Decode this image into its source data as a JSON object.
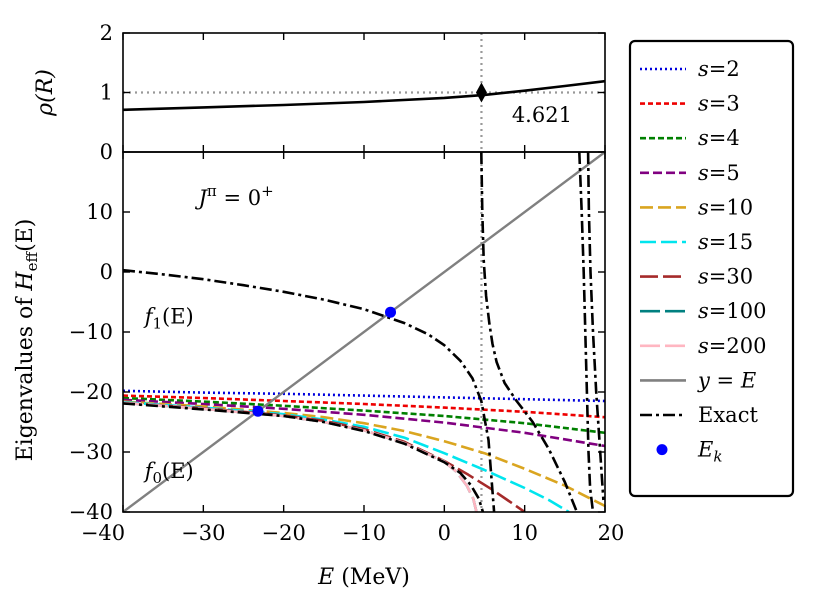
{
  "chart_data": [
    {
      "id": "top",
      "type": "line",
      "ylabel": "ρ(R)",
      "xlim": [
        -40,
        20
      ],
      "ylim": [
        0,
        2
      ],
      "yticks": [
        0,
        1,
        2
      ],
      "yticklabels": [
        "0",
        "1",
        "2"
      ],
      "xticks": [
        -40,
        -30,
        -20,
        -10,
        0,
        10,
        20
      ],
      "series": [
        {
          "name": "rho",
          "color": "#000000",
          "x": [
            -40,
            -30,
            -20,
            -10,
            0,
            5,
            10,
            15,
            20
          ],
          "y": [
            0.71,
            0.75,
            0.79,
            0.84,
            0.91,
            0.96,
            1.03,
            1.11,
            1.19
          ]
        }
      ],
      "reference_lines": {
        "horizontal_y": 1.0,
        "vertical_x": 4.621,
        "color": "#999999"
      },
      "marker": {
        "x": 4.621,
        "y": 1.0,
        "shape": "diamond",
        "color": "#000000"
      },
      "annotation": {
        "text": "4.621",
        "x": 8.4,
        "y": 0.62
      }
    },
    {
      "id": "main",
      "type": "line",
      "xlabel_var": "E",
      "xlabel_unit": " (MeV)",
      "ylabel_prefix": "Eigenvalues of ",
      "ylabel_var": "H",
      "ylabel_sub": "eff",
      "ylabel_suffix": "(E)",
      "xlim": [
        -40,
        20
      ],
      "ylim": [
        -40,
        20
      ],
      "xticks": [
        -40,
        -30,
        -20,
        -10,
        0,
        10,
        20
      ],
      "xticklabels": [
        "−40",
        "−30",
        "−20",
        "−10",
        "0",
        "10",
        "20"
      ],
      "yticks": [
        -40,
        -30,
        -20,
        -10,
        0,
        10
      ],
      "yticklabels": [
        "−40",
        "−30",
        "−20",
        "−10",
        "0",
        "10"
      ],
      "annotations": {
        "jpi": {
          "var": "J",
          "sup": "π",
          "rest": " = 0",
          "sup2": "+",
          "x": -30.6,
          "y": 12.3
        },
        "f1": {
          "var": "f",
          "sub": "1",
          "rest": "(E)",
          "x": -37.3,
          "y": -7.4
        },
        "f0": {
          "var": "f",
          "sub": "0",
          "rest": "(E)",
          "x": -37.3,
          "y": -33.2
        }
      },
      "vertical_line": {
        "x": 4.621,
        "color": "#999999"
      },
      "series": [
        {
          "name": "s=2",
          "color": "#0000dd",
          "dash": "2,3",
          "x": [
            -40,
            -30,
            -20,
            -10,
            0,
            10,
            20
          ],
          "y": [
            -19.8,
            -20.1,
            -20.3,
            -20.6,
            -20.9,
            -21.2,
            -21.5
          ]
        },
        {
          "name": "s=3",
          "color": "#ee0000",
          "dash": "5,3",
          "x": [
            -40,
            -30,
            -20,
            -10,
            0,
            10,
            20
          ],
          "y": [
            -20.6,
            -21.0,
            -21.5,
            -22.0,
            -22.6,
            -23.3,
            -24.2
          ]
        },
        {
          "name": "s=4",
          "color": "#008000",
          "dash": "6,3",
          "x": [
            -40,
            -30,
            -20,
            -10,
            0,
            10,
            20
          ],
          "y": [
            -21.0,
            -21.6,
            -22.3,
            -23.1,
            -24.0,
            -25.2,
            -26.8
          ]
        },
        {
          "name": "s=5",
          "color": "#800080",
          "dash": "9,4",
          "x": [
            -40,
            -30,
            -20,
            -10,
            0,
            10,
            20
          ],
          "y": [
            -21.3,
            -22.0,
            -22.8,
            -23.8,
            -25.1,
            -26.8,
            -29.0
          ]
        },
        {
          "name": "s=10",
          "color": "#daa520",
          "dash": "13,5",
          "x": [
            -40,
            -30,
            -20,
            -15,
            -10,
            -5,
            0,
            5,
            10,
            15,
            20
          ],
          "y": [
            -21.6,
            -22.4,
            -23.5,
            -24.2,
            -25.2,
            -26.5,
            -28.2,
            -30.2,
            -32.8,
            -35.6,
            -39.0
          ]
        },
        {
          "name": "s=15",
          "color": "#00e5ee",
          "dash": "16,5",
          "x": [
            -40,
            -30,
            -20,
            -15,
            -10,
            -5,
            0,
            5,
            10,
            13,
            15.5
          ],
          "y": [
            -21.7,
            -22.6,
            -23.7,
            -24.6,
            -25.8,
            -27.6,
            -30.2,
            -33.0,
            -36.0,
            -38.0,
            -40.0
          ]
        },
        {
          "name": "s=30",
          "color": "#a52a2a",
          "dash": "18,5",
          "x": [
            -40,
            -30,
            -20,
            -15,
            -10,
            -5,
            0,
            3,
            6,
            8.5,
            10
          ],
          "y": [
            -21.8,
            -22.7,
            -23.9,
            -24.8,
            -26.2,
            -28.3,
            -31.5,
            -33.8,
            -36.3,
            -38.6,
            -40.0
          ]
        },
        {
          "name": "s=100",
          "color": "#008080",
          "dash": "20,5",
          "x": [
            -40,
            -30,
            -20,
            -15,
            -10,
            -5,
            0,
            1.5,
            2.8,
            3.6,
            4.0
          ],
          "y": [
            -21.8,
            -22.8,
            -24.0,
            -25.0,
            -26.4,
            -28.5,
            -31.6,
            -33.3,
            -35.6,
            -37.8,
            -40.0
          ]
        },
        {
          "name": "s=200",
          "color": "#ffb6c1",
          "dash": "20,5",
          "x": [
            -40,
            -30,
            -20,
            -15,
            -10,
            -5,
            0,
            1.5,
            2.8,
            3.6,
            4.0
          ],
          "y": [
            -21.8,
            -22.8,
            -24.0,
            -25.0,
            -26.4,
            -28.5,
            -31.6,
            -33.3,
            -35.6,
            -37.8,
            -40.0
          ]
        },
        {
          "name": "y = E",
          "color": "#808080",
          "dash": "",
          "x": [
            -40,
            20
          ],
          "y": [
            -40,
            20
          ]
        },
        {
          "name": "Exact",
          "color": "#000000",
          "dash": "12,4,3,4",
          "x": [
            -40,
            -30,
            -20,
            -15,
            -10,
            -5,
            0,
            2,
            3.3,
            4.3,
            4.8
          ],
          "y": [
            -21.9,
            -22.9,
            -24.0,
            -25.0,
            -26.5,
            -28.6,
            -31.7,
            -33.5,
            -35.5,
            -37.8,
            -40.0
          ],
          "legend": true
        },
        {
          "name": "Exact-b2",
          "color": "#000000",
          "dash": "12,4,3,4",
          "x": [
            -40,
            -35,
            -30,
            -25,
            -20,
            -15,
            -10,
            -5,
            -2,
            0,
            2,
            3.5,
            4.6,
            5.5,
            6.2
          ],
          "y": [
            0.3,
            -0.4,
            -1.2,
            -2.2,
            -3.3,
            -4.6,
            -6.2,
            -8.5,
            -10.4,
            -12.2,
            -14.8,
            -17.7,
            -21.5,
            -28.0,
            -40.0
          ],
          "legend": false
        },
        {
          "name": "Exact-b3",
          "color": "#000000",
          "dash": "12,4,3,4",
          "x": [
            4.6,
            4.72,
            4.9,
            5.2,
            5.6,
            6.0,
            6.5,
            7.5,
            9,
            11,
            13,
            15,
            16.5
          ],
          "y": [
            20,
            10,
            2,
            -4,
            -8.5,
            -12,
            -15,
            -18.5,
            -21.5,
            -25.0,
            -29.5,
            -35.0,
            -40.0
          ],
          "legend": false
        },
        {
          "name": "Exact-b4",
          "color": "#000000",
          "dash": "12,4,3,4",
          "x": [
            16.8,
            17.1,
            17.35,
            17.55,
            17.75,
            17.95,
            18.15,
            18.5
          ],
          "y": [
            20,
            10,
            0,
            -10,
            -20,
            -30,
            -36,
            -40
          ],
          "legend": false
        },
        {
          "name": "Exact-b5",
          "color": "#000000",
          "dash": "12,4,3,4",
          "x": [
            17.9,
            18.0,
            18.2,
            18.5,
            18.9,
            19.4,
            19.8
          ],
          "y": [
            20,
            10,
            0,
            -10,
            -20,
            -30,
            -38
          ],
          "legend": false
        }
      ],
      "points": {
        "name": "E_k",
        "color": "#0000ff",
        "x": [
          -23.2,
          -6.7
        ],
        "y": [
          -23.2,
          -6.7
        ]
      }
    }
  ],
  "legend": {
    "items": [
      {
        "label": "s=2",
        "style": "line",
        "color": "#0000dd",
        "dash": "2,3"
      },
      {
        "label": "s=3",
        "style": "line",
        "color": "#ee0000",
        "dash": "5,3"
      },
      {
        "label": "s=4",
        "style": "line",
        "color": "#008000",
        "dash": "6,3"
      },
      {
        "label": "s=5",
        "style": "line",
        "color": "#800080",
        "dash": "9,4"
      },
      {
        "label": "s=10",
        "style": "line",
        "color": "#daa520",
        "dash": "13,5"
      },
      {
        "label": "s=15",
        "style": "line",
        "color": "#00e5ee",
        "dash": "16,5"
      },
      {
        "label": "s=30",
        "style": "line",
        "color": "#a52a2a",
        "dash": "18,5"
      },
      {
        "label": "s=100",
        "style": "line",
        "color": "#008080",
        "dash": "20,5"
      },
      {
        "label": "s=200",
        "style": "line",
        "color": "#ffb6c1",
        "dash": "20,5"
      },
      {
        "label": "y = E",
        "style": "line",
        "color": "#808080",
        "dash": ""
      },
      {
        "label": "Exact",
        "style": "line",
        "color": "#000000",
        "dash": "12,4,3,4"
      },
      {
        "label": "E_k",
        "style": "point",
        "color": "#0000ff",
        "dash": ""
      }
    ]
  }
}
